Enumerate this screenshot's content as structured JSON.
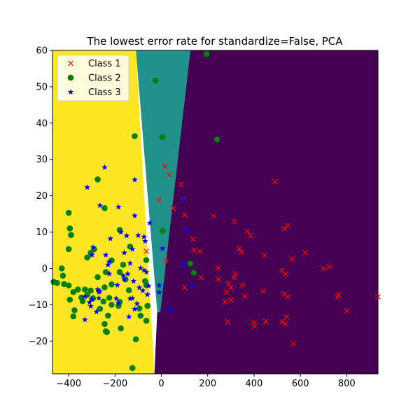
{
  "chart_data": {
    "type": "scatter",
    "title": "The lowest error rate for standardize=False, PCA",
    "xlabel": "",
    "ylabel": "",
    "xlim": [
      -470,
      935
    ],
    "ylim": [
      -29,
      60
    ],
    "xticks": [
      -400,
      -200,
      0,
      200,
      400,
      600,
      800
    ],
    "yticks": [
      -20,
      -10,
      0,
      10,
      20,
      30,
      40,
      50,
      60
    ],
    "grid": false,
    "legend_position": "top-left",
    "regions": [
      {
        "class": "Class 3",
        "color": "#fde725",
        "polygon": [
          [
            -470,
            -29
          ],
          [
            -470,
            60
          ],
          [
            -110,
            60
          ],
          [
            -30,
            -29
          ]
        ]
      },
      {
        "class": "Class 2",
        "color": "#21918c",
        "polygon": [
          [
            -110,
            60
          ],
          [
            125,
            60
          ],
          [
            -5,
            -12
          ],
          [
            -18,
            -12
          ]
        ]
      },
      {
        "class": "Class 1",
        "color": "#440154",
        "polygon": [
          [
            125,
            60
          ],
          [
            935,
            60
          ],
          [
            935,
            -29
          ],
          [
            -30,
            -29
          ],
          [
            -18,
            -12
          ],
          [
            -5,
            -12
          ]
        ]
      }
    ],
    "series": [
      {
        "name": "Class 1",
        "marker": "x",
        "color": "#ff0000",
        "points": [
          [
            -65,
            4.7
          ],
          [
            15,
            28.1
          ],
          [
            35,
            25.8
          ],
          [
            -10,
            18.8
          ],
          [
            50,
            16.5
          ],
          [
            85,
            23.1
          ],
          [
            95,
            18.8
          ],
          [
            100,
            14.7
          ],
          [
            135,
            8.1
          ],
          [
            140,
            5.0
          ],
          [
            165,
            4.7
          ],
          [
            225,
            14.4
          ],
          [
            315,
            12.9
          ],
          [
            370,
            10.2
          ],
          [
            385,
            9.0
          ],
          [
            335,
            5.5
          ],
          [
            345,
            4.5
          ],
          [
            245,
            0.1
          ],
          [
            320,
            -1.5
          ],
          [
            315,
            -2.5
          ],
          [
            245,
            -3.0
          ],
          [
            170,
            -2.5
          ],
          [
            20,
            2.0
          ],
          [
            100,
            -5.3
          ],
          [
            280,
            -6.5
          ],
          [
            300,
            -5.3
          ],
          [
            290,
            -4.1
          ],
          [
            275,
            -9.2
          ],
          [
            300,
            -8.7
          ],
          [
            350,
            -4.7
          ],
          [
            360,
            -7.7
          ],
          [
            440,
            -6.2
          ],
          [
            445,
            3.6
          ],
          [
            490,
            23.9
          ],
          [
            530,
            11.0
          ],
          [
            545,
            11.8
          ],
          [
            565,
            2.6
          ],
          [
            520,
            -0.5
          ],
          [
            535,
            -1.5
          ],
          [
            530,
            -7.0
          ],
          [
            545,
            -7.9
          ],
          [
            520,
            -14.7
          ],
          [
            540,
            -13.3
          ],
          [
            535,
            -15.2
          ],
          [
            570,
            -20.7
          ],
          [
            400,
            -14.9
          ],
          [
            400,
            -15.9
          ],
          [
            450,
            -14.6
          ],
          [
            620,
            4.4
          ],
          [
            700,
            0.0
          ],
          [
            725,
            0.5
          ],
          [
            765,
            -7.2
          ],
          [
            760,
            -8.0
          ],
          [
            800,
            -11.7
          ],
          [
            935,
            -7.8
          ],
          [
            285,
            -14.7
          ]
        ]
      },
      {
        "name": "Class 2",
        "marker": "o",
        "color": "#008000",
        "points": [
          [
            195,
            59.0
          ],
          [
            -25,
            51.7
          ],
          [
            -115,
            36.4
          ],
          [
            5,
            36.1
          ],
          [
            240,
            35.5
          ],
          [
            -275,
            24.5
          ],
          [
            -245,
            16.6
          ],
          [
            -400,
            15.3
          ],
          [
            -395,
            11.0
          ],
          [
            -390,
            9.2
          ],
          [
            -180,
            10.6
          ],
          [
            5,
            10.3
          ],
          [
            -135,
            6.0
          ],
          [
            -65,
            2.3
          ],
          [
            -290,
            5.3
          ],
          [
            -305,
            4.3
          ],
          [
            -320,
            3.0
          ],
          [
            -400,
            5.3
          ],
          [
            -430,
            0.0
          ],
          [
            -425,
            -2.0
          ],
          [
            -450,
            -4.0
          ],
          [
            -465,
            -3.7
          ],
          [
            -420,
            -4.3
          ],
          [
            -400,
            -4.7
          ],
          [
            -380,
            -6.5
          ],
          [
            -360,
            -5.8
          ],
          [
            -345,
            -8.0
          ],
          [
            -340,
            -9.0
          ],
          [
            -330,
            -5.8
          ],
          [
            -320,
            -7.3
          ],
          [
            -305,
            -6.1
          ],
          [
            -295,
            -8.2
          ],
          [
            -275,
            -2.4
          ],
          [
            -245,
            -5.2
          ],
          [
            -250,
            -9.1
          ],
          [
            -225,
            -8.1
          ],
          [
            -215,
            -4.4
          ],
          [
            -180,
            -9.2
          ],
          [
            -185,
            -10.3
          ],
          [
            -175,
            -16.5
          ],
          [
            -110,
            -19.5
          ],
          [
            -125,
            -27.4
          ],
          [
            -90,
            -13.0
          ],
          [
            -60,
            -10.3
          ],
          [
            -65,
            -14.4
          ],
          [
            -245,
            -15.3
          ],
          [
            -235,
            -17.5
          ],
          [
            -240,
            -17.3
          ],
          [
            -265,
            -11.1
          ],
          [
            -375,
            -11.5
          ],
          [
            -380,
            -13.2
          ],
          [
            -395,
            -8.6
          ],
          [
            -215,
            -10.0
          ],
          [
            -230,
            -13.0
          ],
          [
            -95,
            -11.0
          ],
          [
            -65,
            -4.6
          ],
          [
            125,
            1.3
          ],
          [
            140,
            -1.2
          ],
          [
            -165,
            1.0
          ],
          [
            -215,
            2.2
          ],
          [
            -240,
            -1.0
          ],
          [
            -180,
            -1.0
          ],
          [
            -155,
            -3.0
          ],
          [
            -140,
            -6.0
          ],
          [
            -70,
            -3.5
          ]
        ]
      },
      {
        "name": "Class 3",
        "marker": "*",
        "color": "#0000ff",
        "points": [
          [
            -245,
            27.8
          ],
          [
            -115,
            24.4
          ],
          [
            -320,
            22.3
          ],
          [
            -265,
            17.3
          ],
          [
            -185,
            16.9
          ],
          [
            -115,
            14.5
          ],
          [
            -50,
            12.5
          ],
          [
            -175,
            10.0
          ],
          [
            -150,
            9.0
          ],
          [
            -100,
            9.1
          ],
          [
            -70,
            7.5
          ],
          [
            -75,
            8.7
          ],
          [
            -220,
            8.2
          ],
          [
            -295,
            5.8
          ],
          [
            -300,
            3.7
          ],
          [
            -240,
            3.7
          ],
          [
            -160,
            4.3
          ],
          [
            -125,
            5.3
          ],
          [
            -225,
            1.8
          ],
          [
            -230,
            1.0
          ],
          [
            -135,
            1.4
          ],
          [
            -90,
            0.1
          ],
          [
            -75,
            -0.5
          ],
          [
            -65,
            -1.0
          ],
          [
            5,
            5.5
          ],
          [
            95,
            1.0
          ],
          [
            95,
            18.8
          ],
          [
            110,
            10.5
          ],
          [
            -225,
            -1.5
          ],
          [
            -165,
            -2.0
          ],
          [
            -145,
            -1.5
          ],
          [
            -160,
            -3.0
          ],
          [
            -120,
            -3.5
          ],
          [
            -190,
            -4.6
          ],
          [
            -270,
            -6.5
          ],
          [
            -275,
            -5.8
          ],
          [
            -270,
            -8.2
          ],
          [
            -305,
            -10.4
          ],
          [
            -300,
            -8.5
          ],
          [
            -310,
            -9.3
          ],
          [
            -330,
            -7.8
          ],
          [
            -330,
            -14.1
          ],
          [
            -280,
            -11.9
          ],
          [
            -265,
            -6.3
          ],
          [
            -195,
            -8.3
          ],
          [
            -185,
            -9.6
          ],
          [
            -135,
            -8.3
          ],
          [
            -125,
            -8.2
          ],
          [
            -105,
            -9.7
          ],
          [
            -115,
            -11.2
          ],
          [
            -95,
            -5.3
          ],
          [
            -55,
            -4.8
          ],
          [
            -10,
            -6.6
          ],
          [
            35,
            -11.3
          ],
          [
            -60,
            -7.2
          ],
          [
            -80,
            -6.1
          ],
          [
            -140,
            -13.3
          ],
          [
            130,
            -4.7
          ],
          [
            -10,
            -4.7
          ]
        ]
      }
    ]
  }
}
